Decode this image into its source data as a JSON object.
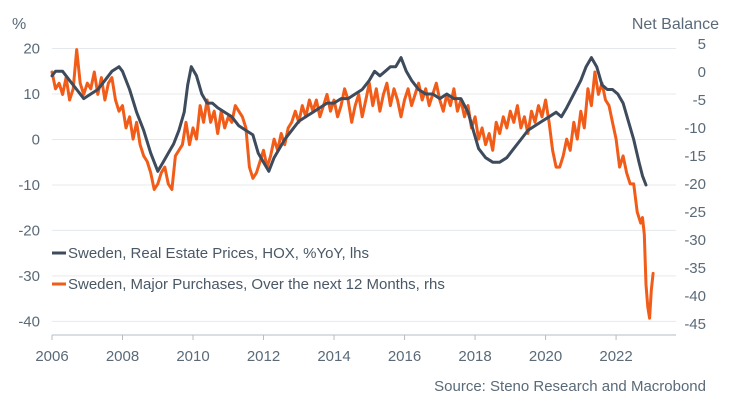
{
  "chart_data": {
    "type": "line",
    "left_axis": {
      "unit": "%",
      "ticks": [
        20,
        10,
        0,
        -10,
        -20,
        -30,
        -40
      ],
      "range": [
        -43,
        21
      ]
    },
    "right_axis": {
      "unit": "Net Balance",
      "ticks": [
        5,
        0,
        -5,
        -10,
        -15,
        -20,
        -25,
        -30,
        -35,
        -40,
        -45
      ],
      "range": [
        -47,
        5
      ]
    },
    "x_axis": {
      "ticks": [
        "2006",
        "2008",
        "2010",
        "2012",
        "2014",
        "2016",
        "2018",
        "2020",
        "2022"
      ],
      "range": [
        2006,
        2023.7
      ]
    },
    "grid": "horizontal",
    "legend_placement": "lower-left",
    "source": "Source: Steno Research and Macrobond",
    "series": [
      {
        "name": "Sweden, Real Estate Prices, HOX, %YoY, lhs",
        "axis": "left",
        "color": "#3d4b5c",
        "points": [
          [
            2006.0,
            14
          ],
          [
            2006.1,
            15
          ],
          [
            2006.3,
            15
          ],
          [
            2006.5,
            13
          ],
          [
            2006.7,
            11
          ],
          [
            2006.9,
            9
          ],
          [
            2007.1,
            10
          ],
          [
            2007.3,
            11
          ],
          [
            2007.5,
            13
          ],
          [
            2007.7,
            15
          ],
          [
            2007.9,
            16
          ],
          [
            2008.0,
            15
          ],
          [
            2008.2,
            11
          ],
          [
            2008.4,
            6
          ],
          [
            2008.6,
            2
          ],
          [
            2008.8,
            -3
          ],
          [
            2009.0,
            -7
          ],
          [
            2009.15,
            -5
          ],
          [
            2009.3,
            -3
          ],
          [
            2009.45,
            -1
          ],
          [
            2009.6,
            2
          ],
          [
            2009.75,
            6
          ],
          [
            2009.85,
            12
          ],
          [
            2009.95,
            16
          ],
          [
            2010.1,
            14
          ],
          [
            2010.25,
            10
          ],
          [
            2010.4,
            8
          ],
          [
            2010.55,
            8
          ],
          [
            2010.7,
            7
          ],
          [
            2010.9,
            6
          ],
          [
            2011.1,
            5
          ],
          [
            2011.3,
            3
          ],
          [
            2011.5,
            2
          ],
          [
            2011.7,
            1
          ],
          [
            2011.85,
            -3
          ],
          [
            2012.0,
            -5
          ],
          [
            2012.15,
            -7
          ],
          [
            2012.3,
            -4
          ],
          [
            2012.45,
            -2
          ],
          [
            2012.6,
            0
          ],
          [
            2012.8,
            2
          ],
          [
            2013.0,
            4
          ],
          [
            2013.2,
            5
          ],
          [
            2013.4,
            6
          ],
          [
            2013.6,
            7
          ],
          [
            2013.8,
            8
          ],
          [
            2014.0,
            8
          ],
          [
            2014.2,
            9
          ],
          [
            2014.4,
            9
          ],
          [
            2014.6,
            10
          ],
          [
            2014.8,
            11
          ],
          [
            2015.0,
            13
          ],
          [
            2015.15,
            15
          ],
          [
            2015.3,
            14
          ],
          [
            2015.45,
            15
          ],
          [
            2015.6,
            16
          ],
          [
            2015.75,
            16
          ],
          [
            2015.9,
            18
          ],
          [
            2016.05,
            15
          ],
          [
            2016.2,
            13
          ],
          [
            2016.4,
            11
          ],
          [
            2016.6,
            10
          ],
          [
            2016.8,
            10
          ],
          [
            2017.0,
            9
          ],
          [
            2017.2,
            10
          ],
          [
            2017.4,
            9
          ],
          [
            2017.6,
            9
          ],
          [
            2017.8,
            6
          ],
          [
            2017.95,
            2
          ],
          [
            2018.1,
            -2
          ],
          [
            2018.3,
            -4
          ],
          [
            2018.5,
            -5
          ],
          [
            2018.7,
            -5
          ],
          [
            2018.9,
            -4
          ],
          [
            2019.1,
            -2
          ],
          [
            2019.3,
            0
          ],
          [
            2019.5,
            2
          ],
          [
            2019.7,
            3
          ],
          [
            2019.9,
            4
          ],
          [
            2020.1,
            5
          ],
          [
            2020.3,
            6
          ],
          [
            2020.45,
            5
          ],
          [
            2020.6,
            7
          ],
          [
            2020.8,
            10
          ],
          [
            2021.0,
            13
          ],
          [
            2021.15,
            16
          ],
          [
            2021.3,
            18
          ],
          [
            2021.45,
            16
          ],
          [
            2021.6,
            12
          ],
          [
            2021.75,
            11
          ],
          [
            2021.9,
            11
          ],
          [
            2022.05,
            10
          ],
          [
            2022.2,
            8
          ],
          [
            2022.35,
            4
          ],
          [
            2022.5,
            0
          ],
          [
            2022.65,
            -5
          ],
          [
            2022.75,
            -8
          ],
          [
            2022.85,
            -10
          ]
        ]
      },
      {
        "name": "Sweden, Major Purchases, Over the next 12 Months, rhs",
        "axis": "right",
        "color": "#f25c19",
        "points": [
          [
            2006.0,
            0
          ],
          [
            2006.1,
            -3
          ],
          [
            2006.2,
            -2
          ],
          [
            2006.3,
            -4
          ],
          [
            2006.4,
            -1
          ],
          [
            2006.5,
            -5
          ],
          [
            2006.6,
            -3
          ],
          [
            2006.7,
            4
          ],
          [
            2006.8,
            -2
          ],
          [
            2006.9,
            -4
          ],
          [
            2007.0,
            -2
          ],
          [
            2007.1,
            -3
          ],
          [
            2007.2,
            0
          ],
          [
            2007.3,
            -4
          ],
          [
            2007.4,
            -1
          ],
          [
            2007.5,
            -5
          ],
          [
            2007.6,
            -2
          ],
          [
            2007.7,
            -1
          ],
          [
            2007.8,
            -5
          ],
          [
            2007.9,
            -7
          ],
          [
            2008.0,
            -6
          ],
          [
            2008.1,
            -10
          ],
          [
            2008.2,
            -8
          ],
          [
            2008.3,
            -12
          ],
          [
            2008.4,
            -9
          ],
          [
            2008.5,
            -13
          ],
          [
            2008.6,
            -15
          ],
          [
            2008.7,
            -16
          ],
          [
            2008.8,
            -18
          ],
          [
            2008.9,
            -21
          ],
          [
            2009.0,
            -20
          ],
          [
            2009.1,
            -18
          ],
          [
            2009.2,
            -17
          ],
          [
            2009.3,
            -20
          ],
          [
            2009.4,
            -21
          ],
          [
            2009.5,
            -15
          ],
          [
            2009.6,
            -14
          ],
          [
            2009.7,
            -13
          ],
          [
            2009.8,
            -9
          ],
          [
            2009.9,
            -13
          ],
          [
            2010.0,
            -10
          ],
          [
            2010.1,
            -12
          ],
          [
            2010.2,
            -6
          ],
          [
            2010.3,
            -9
          ],
          [
            2010.4,
            -5
          ],
          [
            2010.5,
            -9
          ],
          [
            2010.6,
            -7
          ],
          [
            2010.7,
            -11
          ],
          [
            2010.8,
            -7
          ],
          [
            2010.9,
            -10
          ],
          [
            2011.0,
            -8
          ],
          [
            2011.1,
            -9
          ],
          [
            2011.2,
            -6
          ],
          [
            2011.3,
            -7
          ],
          [
            2011.4,
            -8
          ],
          [
            2011.5,
            -10
          ],
          [
            2011.6,
            -17
          ],
          [
            2011.7,
            -19
          ],
          [
            2011.8,
            -18
          ],
          [
            2011.9,
            -16
          ],
          [
            2012.0,
            -14
          ],
          [
            2012.1,
            -17
          ],
          [
            2012.2,
            -15
          ],
          [
            2012.3,
            -12
          ],
          [
            2012.4,
            -14
          ],
          [
            2012.5,
            -11
          ],
          [
            2012.6,
            -13
          ],
          [
            2012.7,
            -10
          ],
          [
            2012.8,
            -9
          ],
          [
            2012.9,
            -7
          ],
          [
            2013.0,
            -9
          ],
          [
            2013.1,
            -6
          ],
          [
            2013.2,
            -8
          ],
          [
            2013.3,
            -5
          ],
          [
            2013.4,
            -7
          ],
          [
            2013.5,
            -5
          ],
          [
            2013.6,
            -8
          ],
          [
            2013.7,
            -6
          ],
          [
            2013.8,
            -4
          ],
          [
            2013.9,
            -7
          ],
          [
            2014.0,
            -5
          ],
          [
            2014.1,
            -8
          ],
          [
            2014.2,
            -6
          ],
          [
            2014.3,
            -3
          ],
          [
            2014.4,
            -5
          ],
          [
            2014.5,
            -9
          ],
          [
            2014.6,
            -6
          ],
          [
            2014.7,
            -4
          ],
          [
            2014.8,
            -8
          ],
          [
            2014.9,
            -5
          ],
          [
            2015.0,
            -2
          ],
          [
            2015.1,
            -6
          ],
          [
            2015.2,
            -3
          ],
          [
            2015.3,
            -7
          ],
          [
            2015.4,
            -4
          ],
          [
            2015.5,
            -2
          ],
          [
            2015.6,
            -6
          ],
          [
            2015.7,
            -3
          ],
          [
            2015.8,
            -5
          ],
          [
            2015.9,
            -8
          ],
          [
            2016.0,
            -5
          ],
          [
            2016.1,
            -3
          ],
          [
            2016.2,
            -6
          ],
          [
            2016.3,
            -4
          ],
          [
            2016.4,
            -2
          ],
          [
            2016.5,
            -5
          ],
          [
            2016.6,
            -3
          ],
          [
            2016.7,
            -6
          ],
          [
            2016.8,
            -4
          ],
          [
            2016.9,
            -2
          ],
          [
            2017.0,
            -5
          ],
          [
            2017.1,
            -7
          ],
          [
            2017.2,
            -4
          ],
          [
            2017.3,
            -6
          ],
          [
            2017.4,
            -3
          ],
          [
            2017.5,
            -7
          ],
          [
            2017.6,
            -5
          ],
          [
            2017.7,
            -8
          ],
          [
            2017.8,
            -6
          ],
          [
            2017.9,
            -10
          ],
          [
            2018.0,
            -8
          ],
          [
            2018.1,
            -12
          ],
          [
            2018.2,
            -10
          ],
          [
            2018.3,
            -13
          ],
          [
            2018.4,
            -11
          ],
          [
            2018.5,
            -14
          ],
          [
            2018.6,
            -9
          ],
          [
            2018.7,
            -11
          ],
          [
            2018.8,
            -8
          ],
          [
            2018.9,
            -10
          ],
          [
            2019.0,
            -7
          ],
          [
            2019.1,
            -9
          ],
          [
            2019.2,
            -6
          ],
          [
            2019.3,
            -10
          ],
          [
            2019.4,
            -8
          ],
          [
            2019.5,
            -11
          ],
          [
            2019.6,
            -7
          ],
          [
            2019.7,
            -9
          ],
          [
            2019.8,
            -6
          ],
          [
            2019.9,
            -8
          ],
          [
            2020.0,
            -5
          ],
          [
            2020.1,
            -9
          ],
          [
            2020.2,
            -14
          ],
          [
            2020.3,
            -17
          ],
          [
            2020.4,
            -17
          ],
          [
            2020.5,
            -15
          ],
          [
            2020.6,
            -12
          ],
          [
            2020.7,
            -14
          ],
          [
            2020.8,
            -9
          ],
          [
            2020.9,
            -12
          ],
          [
            2021.0,
            -7
          ],
          [
            2021.1,
            -10
          ],
          [
            2021.2,
            -3
          ],
          [
            2021.3,
            -6
          ],
          [
            2021.4,
            0
          ],
          [
            2021.5,
            -4
          ],
          [
            2021.6,
            -2
          ],
          [
            2021.7,
            -5
          ],
          [
            2021.8,
            -6
          ],
          [
            2021.9,
            -9
          ],
          [
            2022.0,
            -12
          ],
          [
            2022.1,
            -17
          ],
          [
            2022.2,
            -15
          ],
          [
            2022.3,
            -18
          ],
          [
            2022.4,
            -20
          ],
          [
            2022.5,
            -20
          ],
          [
            2022.6,
            -25
          ],
          [
            2022.7,
            -27
          ],
          [
            2022.75,
            -26
          ],
          [
            2022.8,
            -29
          ],
          [
            2022.85,
            -38
          ],
          [
            2022.9,
            -42
          ],
          [
            2022.95,
            -44
          ],
          [
            2023.0,
            -39
          ],
          [
            2023.05,
            -36
          ]
        ]
      }
    ]
  }
}
